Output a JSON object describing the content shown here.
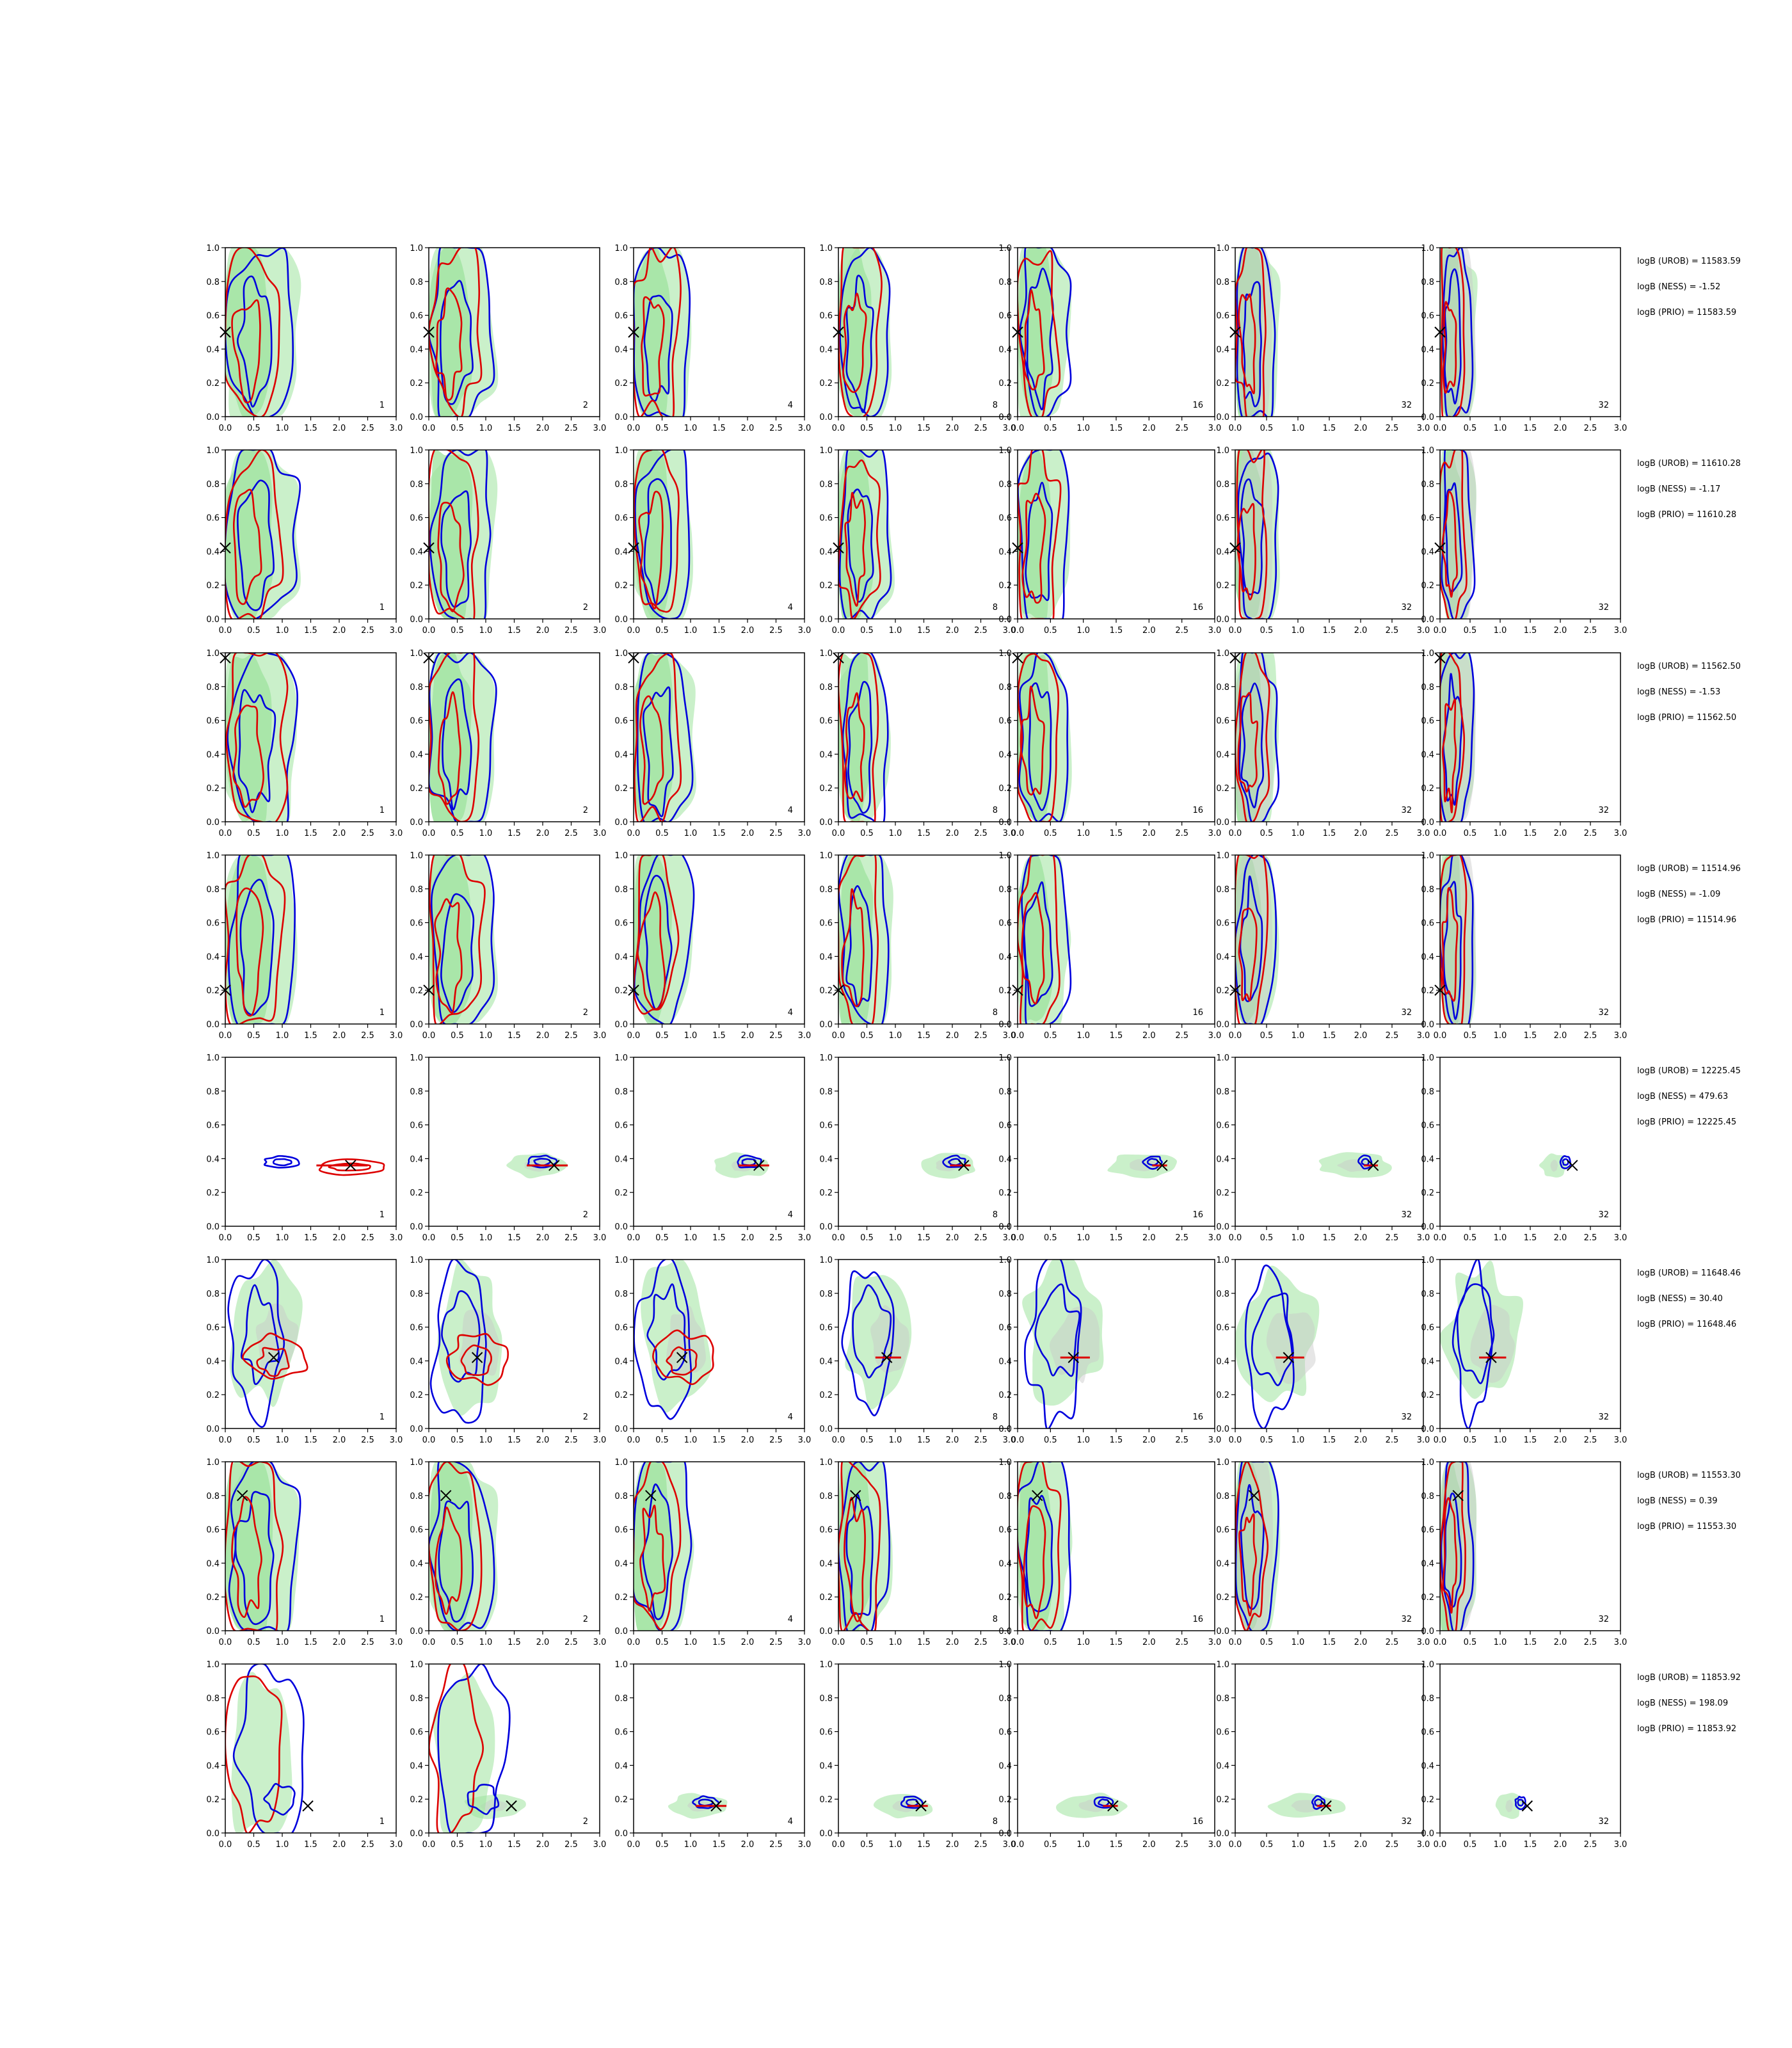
{
  "figure": {
    "x_ticks": [
      "0.0",
      "0.5",
      "1.0",
      "1.5",
      "2.0",
      "2.5",
      "3.0"
    ],
    "y_ticks": [
      "0.0",
      "0.2",
      "0.4",
      "0.6",
      "0.8",
      "1.0"
    ],
    "panel_labels": [
      "1",
      "2",
      "4",
      "8",
      "16",
      "32",
      "32"
    ]
  },
  "colors": {
    "green_fill": "#9ee39e",
    "grey_fill": "#c8c8c8",
    "blue_contour": "#0000dd",
    "red_contour": "#dd0000",
    "marker": "#000000"
  },
  "rows": [
    {
      "logB_UROB": "logB (UROB) = 11583.59",
      "logB_NESS": "logB (NESS) = -1.52",
      "logB_PRIO": "logB (PRIO) = 11583.59"
    },
    {
      "logB_UROB": "logB (UROB) = 11610.28",
      "logB_NESS": "logB (NESS) = -1.17",
      "logB_PRIO": "logB (PRIO) = 11610.28"
    },
    {
      "logB_UROB": "logB (UROB) = 11562.50",
      "logB_NESS": "logB (NESS) = -1.53",
      "logB_PRIO": "logB (PRIO) = 11562.50"
    },
    {
      "logB_UROB": "logB (UROB) = 11514.96",
      "logB_NESS": "logB (NESS) = -1.09",
      "logB_PRIO": "logB (PRIO) = 11514.96"
    },
    {
      "logB_UROB": "logB (UROB) = 12225.45",
      "logB_NESS": "logB (NESS) = 479.63",
      "logB_PRIO": "logB (PRIO) = 12225.45"
    },
    {
      "logB_UROB": "logB (UROB) = 11648.46",
      "logB_NESS": "logB (NESS) = 30.40",
      "logB_PRIO": "logB (PRIO) = 11648.46"
    },
    {
      "logB_UROB": "logB (UROB) = 11553.30",
      "logB_NESS": "logB (NESS) = 0.39",
      "logB_PRIO": "logB (PRIO) = 11553.30"
    },
    {
      "logB_UROB": "logB (UROB) = 11853.92",
      "logB_NESS": "logB (NESS) = 198.09",
      "logB_PRIO": "logB (PRIO) = 11853.92"
    }
  ],
  "chart_data": {
    "type": "contour-grid",
    "xlim": [
      0,
      3
    ],
    "ylim": [
      0,
      1
    ],
    "rows": 8,
    "cols": 7,
    "truth_points": [
      {
        "x": 0.0,
        "y": 0.5
      },
      {
        "x": 0.0,
        "y": 0.42
      },
      {
        "x": 0.0,
        "y": 0.97
      },
      {
        "x": 0.0,
        "y": 0.2
      },
      {
        "x": 2.2,
        "y": 0.36
      },
      {
        "x": 0.85,
        "y": 0.42
      },
      {
        "x": 0.3,
        "y": 0.8
      },
      {
        "x": 1.45,
        "y": 0.16
      }
    ],
    "row_kinds": [
      "vertical",
      "vertical",
      "vertical",
      "vertical",
      "compact",
      "mid",
      "vertical",
      "compact"
    ]
  }
}
